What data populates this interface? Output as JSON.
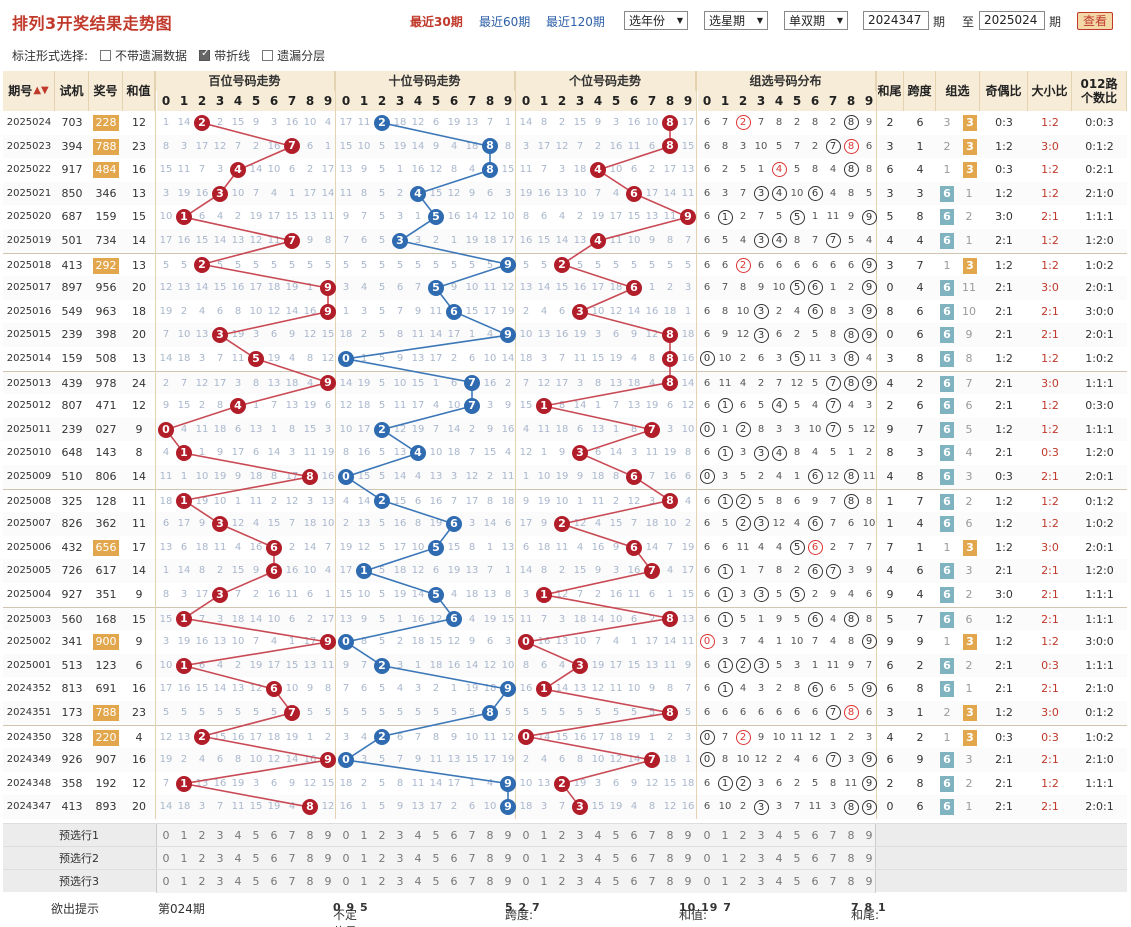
{
  "header": {
    "title": "排列3开奖结果走势图",
    "recent": [
      "最近30期",
      "最近60期",
      "最近120期"
    ],
    "selects": [
      "选年份",
      "选星期",
      "单双期"
    ],
    "from_issue": "2024347",
    "to_issue": "2025024",
    "issue_unit": "期",
    "to_label": "至",
    "query_button": "查看"
  },
  "options": {
    "label": "标注形式选择:",
    "items": [
      {
        "label": "不带遗漏数据",
        "checked": false
      },
      {
        "label": "带折线",
        "checked": true
      },
      {
        "label": "遗漏分层",
        "checked": false
      }
    ]
  },
  "table": {
    "headers": {
      "issue": "期号",
      "trial": "试机",
      "prize": "奖号",
      "sum": "和值",
      "hundreds": "百位号码走势",
      "tens": "十位号码走势",
      "units": "个位号码走势",
      "group": "组选号码分布",
      "tail": "和尾",
      "span": "跨度",
      "zuxuan": "组选",
      "oddeven": "奇偶比",
      "bigsmall": "大小比",
      "road": "012路个数比"
    },
    "digits": [
      "0",
      "1",
      "2",
      "3",
      "4",
      "5",
      "6",
      "7",
      "8",
      "9"
    ],
    "rows": [
      {
        "issue": "2025024",
        "trial": "703",
        "prize": "228",
        "sum": "12",
        "tail": "2",
        "span": "6",
        "g3": "3",
        "g6": "3",
        "grp": "3",
        "oe": "0:3",
        "bs": "1:2",
        "road": "0:0:3",
        "prizeHL": true
      },
      {
        "issue": "2025023",
        "trial": "394",
        "prize": "788",
        "sum": "23",
        "tail": "3",
        "span": "1",
        "g3": "2",
        "g6": "",
        "grp": "3",
        "oe": "1:2",
        "bs": "3:0",
        "road": "0:1:2",
        "prizeHL": true
      },
      {
        "issue": "2025022",
        "trial": "917",
        "prize": "484",
        "sum": "16",
        "tail": "6",
        "span": "4",
        "g3": "1",
        "g6": "",
        "grp": "3",
        "oe": "0:3",
        "bs": "1:2",
        "road": "0:2:1",
        "prizeHL": true
      },
      {
        "issue": "2025021",
        "trial": "850",
        "prize": "346",
        "sum": "13",
        "tail": "3",
        "span": "3",
        "g3": "",
        "g6": "1",
        "grp": "6",
        "oe": "1:2",
        "bs": "1:2",
        "road": "2:1:0"
      },
      {
        "issue": "2025020",
        "trial": "687",
        "prize": "159",
        "sum": "15",
        "tail": "5",
        "span": "8",
        "g3": "",
        "g6": "2",
        "grp": "6",
        "oe": "3:0",
        "bs": "2:1",
        "road": "1:1:1"
      },
      {
        "issue": "2025019",
        "trial": "501",
        "prize": "734",
        "sum": "14",
        "tail": "4",
        "span": "4",
        "g3": "",
        "g6": "1",
        "grp": "6",
        "oe": "2:1",
        "bs": "1:2",
        "road": "1:2:0"
      },
      {
        "issue": "2025018",
        "trial": "413",
        "prize": "292",
        "sum": "13",
        "tail": "3",
        "span": "7",
        "g3": "1",
        "g6": "",
        "grp": "3",
        "oe": "1:2",
        "bs": "1:2",
        "road": "1:0:2",
        "prizeHL": true
      },
      {
        "issue": "2025017",
        "trial": "897",
        "prize": "956",
        "sum": "20",
        "tail": "0",
        "span": "4",
        "g3": "",
        "g6": "11",
        "grp": "6",
        "oe": "2:1",
        "bs": "3:0",
        "road": "2:0:1"
      },
      {
        "issue": "2025016",
        "trial": "549",
        "prize": "963",
        "sum": "18",
        "tail": "8",
        "span": "6",
        "g3": "",
        "g6": "10",
        "grp": "6",
        "oe": "2:1",
        "bs": "2:1",
        "road": "3:0:0"
      },
      {
        "issue": "2025015",
        "trial": "239",
        "prize": "398",
        "sum": "20",
        "tail": "0",
        "span": "6",
        "g3": "",
        "g6": "9",
        "grp": "6",
        "oe": "2:1",
        "bs": "2:1",
        "road": "2:0:1"
      },
      {
        "issue": "2025014",
        "trial": "159",
        "prize": "508",
        "sum": "13",
        "tail": "3",
        "span": "8",
        "g3": "",
        "g6": "8",
        "grp": "6",
        "oe": "1:2",
        "bs": "1:2",
        "road": "1:0:2"
      },
      {
        "issue": "2025013",
        "trial": "439",
        "prize": "978",
        "sum": "24",
        "tail": "4",
        "span": "2",
        "g3": "",
        "g6": "7",
        "grp": "6",
        "oe": "2:1",
        "bs": "3:0",
        "road": "1:1:1"
      },
      {
        "issue": "2025012",
        "trial": "807",
        "prize": "471",
        "sum": "12",
        "tail": "2",
        "span": "6",
        "g3": "",
        "g6": "6",
        "grp": "6",
        "oe": "2:1",
        "bs": "1:2",
        "road": "0:3:0"
      },
      {
        "issue": "2025011",
        "trial": "239",
        "prize": "027",
        "sum": "9",
        "tail": "9",
        "span": "7",
        "g3": "",
        "g6": "5",
        "grp": "6",
        "oe": "1:2",
        "bs": "1:2",
        "road": "1:1:1"
      },
      {
        "issue": "2025010",
        "trial": "648",
        "prize": "143",
        "sum": "8",
        "tail": "8",
        "span": "3",
        "g3": "",
        "g6": "4",
        "grp": "6",
        "oe": "2:1",
        "bs": "0:3",
        "road": "1:2:0"
      },
      {
        "issue": "2025009",
        "trial": "510",
        "prize": "806",
        "sum": "14",
        "tail": "4",
        "span": "8",
        "g3": "",
        "g6": "3",
        "grp": "6",
        "oe": "0:3",
        "bs": "2:1",
        "road": "2:0:1"
      },
      {
        "issue": "2025008",
        "trial": "325",
        "prize": "128",
        "sum": "11",
        "tail": "1",
        "span": "7",
        "g3": "",
        "g6": "2",
        "grp": "6",
        "oe": "1:2",
        "bs": "1:2",
        "road": "0:1:2"
      },
      {
        "issue": "2025007",
        "trial": "826",
        "prize": "362",
        "sum": "11",
        "tail": "1",
        "span": "4",
        "g3": "",
        "g6": "6",
        "grp": "6",
        "oe": "1:2",
        "bs": "1:2",
        "road": "1:0:2"
      },
      {
        "issue": "2025006",
        "trial": "432",
        "prize": "656",
        "sum": "17",
        "tail": "7",
        "span": "1",
        "g3": "1",
        "g6": "",
        "grp": "3",
        "oe": "1:2",
        "bs": "3:0",
        "road": "2:0:1",
        "prizeHL": true
      },
      {
        "issue": "2025005",
        "trial": "726",
        "prize": "617",
        "sum": "14",
        "tail": "4",
        "span": "6",
        "g3": "",
        "g6": "3",
        "grp": "6",
        "oe": "2:1",
        "bs": "2:1",
        "road": "1:2:0"
      },
      {
        "issue": "2025004",
        "trial": "927",
        "prize": "351",
        "sum": "9",
        "tail": "9",
        "span": "4",
        "g3": "",
        "g6": "2",
        "grp": "6",
        "oe": "3:0",
        "bs": "2:1",
        "road": "1:1:1"
      },
      {
        "issue": "2025003",
        "trial": "560",
        "prize": "168",
        "sum": "15",
        "tail": "5",
        "span": "7",
        "g3": "",
        "g6": "6",
        "grp": "6",
        "oe": "1:2",
        "bs": "2:1",
        "road": "1:1:1"
      },
      {
        "issue": "2025002",
        "trial": "341",
        "prize": "900",
        "sum": "9",
        "tail": "9",
        "span": "9",
        "g3": "1",
        "g6": "",
        "grp": "3",
        "oe": "1:2",
        "bs": "1:2",
        "road": "3:0:0",
        "prizeHL": true
      },
      {
        "issue": "2025001",
        "trial": "513",
        "prize": "123",
        "sum": "6",
        "tail": "6",
        "span": "2",
        "g3": "",
        "g6": "2",
        "grp": "6",
        "oe": "2:1",
        "bs": "0:3",
        "road": "1:1:1"
      },
      {
        "issue": "2024352",
        "trial": "813",
        "prize": "691",
        "sum": "16",
        "tail": "6",
        "span": "8",
        "g3": "",
        "g6": "1",
        "grp": "6",
        "oe": "2:1",
        "bs": "2:1",
        "road": "2:1:0"
      },
      {
        "issue": "2024351",
        "trial": "173",
        "prize": "788",
        "sum": "23",
        "tail": "3",
        "span": "1",
        "g3": "2",
        "g6": "",
        "grp": "3",
        "oe": "1:2",
        "bs": "3:0",
        "road": "0:1:2",
        "prizeHL": true
      },
      {
        "issue": "2024350",
        "trial": "328",
        "prize": "220",
        "sum": "4",
        "tail": "4",
        "span": "2",
        "g3": "1",
        "g6": "",
        "grp": "3",
        "oe": "0:3",
        "bs": "0:3",
        "road": "1:0:2",
        "prizeHL": true
      },
      {
        "issue": "2024349",
        "trial": "926",
        "prize": "907",
        "sum": "16",
        "tail": "6",
        "span": "9",
        "g3": "",
        "g6": "3",
        "grp": "6",
        "oe": "2:1",
        "bs": "2:1",
        "road": "2:1:0"
      },
      {
        "issue": "2024348",
        "trial": "358",
        "prize": "192",
        "sum": "12",
        "tail": "2",
        "span": "8",
        "g3": "",
        "g6": "2",
        "grp": "6",
        "oe": "2:1",
        "bs": "1:2",
        "road": "1:1:1"
      },
      {
        "issue": "2024347",
        "trial": "413",
        "prize": "893",
        "sum": "20",
        "tail": "0",
        "span": "6",
        "g3": "",
        "g6": "1",
        "grp": "6",
        "oe": "2:1",
        "bs": "2:1",
        "road": "2:0:1"
      }
    ]
  },
  "preselect": [
    "预选行1",
    "预选行2",
    "预选行3"
  ],
  "hint": {
    "label": "欲出提示",
    "issue": "第024期",
    "undetermined_label": "不定位号:",
    "undetermined": "0 9 5",
    "span_label": "跨度:",
    "span": "5 2 7",
    "sum_label": "和值:",
    "sum": "10 19 7",
    "tail_label": "和尾:",
    "tail": "7 8 1"
  },
  "colors": {
    "red": "#b21d2a",
    "blue": "#2f6bb0",
    "header": "#f7ecd7",
    "accent": "#c0392b"
  }
}
